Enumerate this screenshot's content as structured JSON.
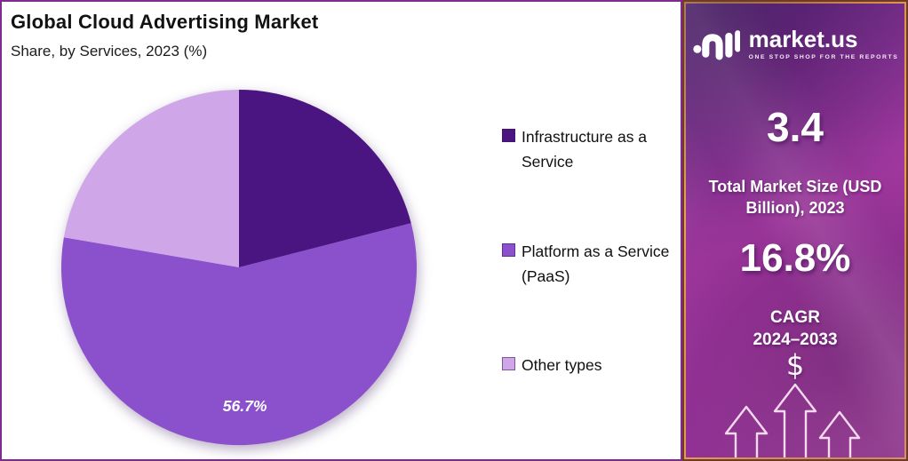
{
  "chart_data": {
    "type": "pie",
    "title": "Global Cloud Advertising Market",
    "subtitle": "Share, by Services, 2023 (%)",
    "unit": "%",
    "start_angle_deg": 0,
    "direction": "clockwise",
    "legend_position": "right",
    "slices": [
      {
        "label": "Infrastructure as a Service",
        "value": 21.0,
        "color": "#4a1581",
        "data_label": ""
      },
      {
        "label": "Platform as a Service (PaaS)",
        "value": 56.7,
        "color": "#8b51cd",
        "data_label": "56.7%"
      },
      {
        "label": "Other types",
        "value": 22.3,
        "color": "#cfa7e9",
        "data_label": ""
      }
    ],
    "data_label_color": "#ffffff"
  },
  "sidebar": {
    "brand": "market.us",
    "tagline": "ONE STOP SHOP FOR THE REPORTS",
    "market_size_value": "3.4",
    "market_size_label": "Total Market Size (USD Billion), 2023",
    "cagr_value": "16.8%",
    "cagr_label_line1": "CAGR",
    "cagr_label_line2": "2024–2033",
    "dollar": "$"
  },
  "colors": {
    "panel-border": "#7d2b8f",
    "sb-border": "#6e3b24",
    "sb-inner": "#ef9e54",
    "sb-top": "#5e2a80",
    "sb-mid": "#a238a0",
    "sb-bottom": "#8e2f96"
  }
}
